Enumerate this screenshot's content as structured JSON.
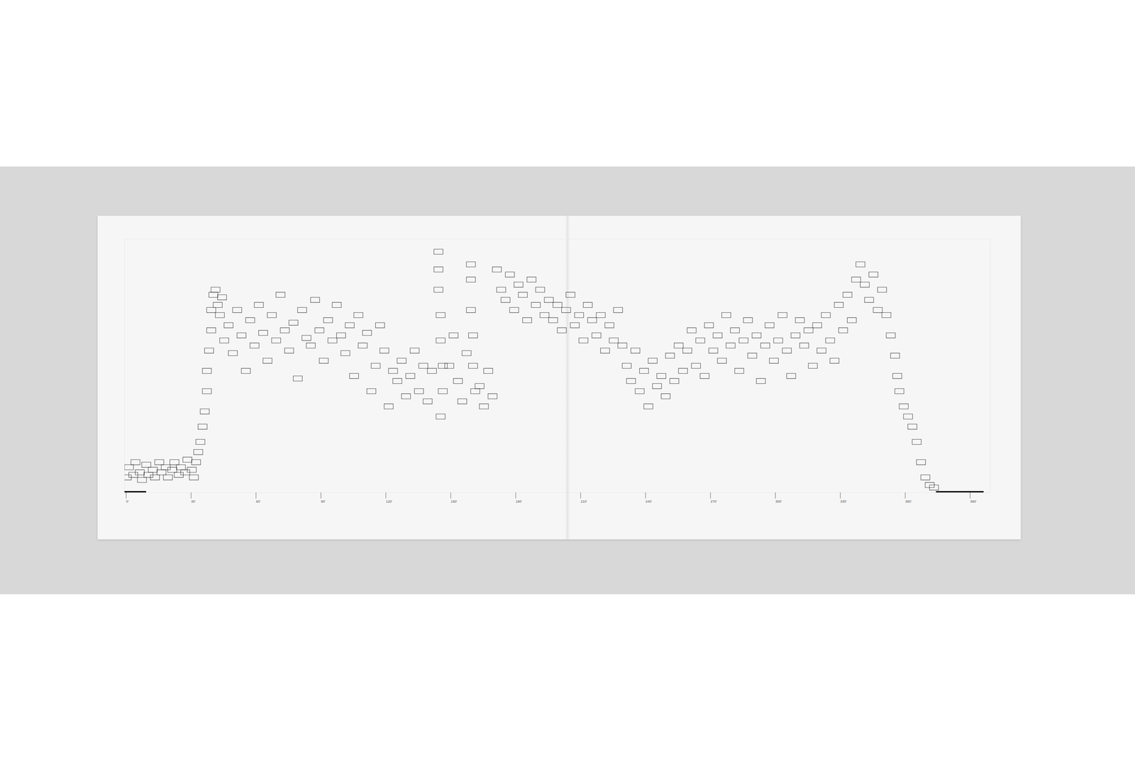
{
  "chart_data": {
    "type": "scatter",
    "marker": "rectangle",
    "color": "#222222",
    "tick_labels": "x",
    "xlim": [
      0,
      400
    ],
    "ylim": [
      0,
      100
    ],
    "xticks": [
      {
        "value": 0,
        "label": "0'"
      },
      {
        "value": 30,
        "label": "30'"
      },
      {
        "value": 60,
        "label": "60'"
      },
      {
        "value": 90,
        "label": "90'"
      },
      {
        "value": 120,
        "label": "120'"
      },
      {
        "value": 150,
        "label": "150'"
      },
      {
        "value": 180,
        "label": "180'"
      },
      {
        "value": 210,
        "label": "210'"
      },
      {
        "value": 240,
        "label": "240'"
      },
      {
        "value": 270,
        "label": "270'"
      },
      {
        "value": 300,
        "label": "300'"
      },
      {
        "value": 330,
        "label": "330'"
      },
      {
        "value": 360,
        "label": "360'"
      },
      {
        "value": 390,
        "label": "390'"
      }
    ],
    "yticks": [],
    "segments": [
      {
        "x1": 0,
        "x2": 10
      },
      {
        "x1": 375,
        "x2": 397
      }
    ],
    "x": [
      1,
      2,
      4,
      5,
      7,
      8,
      10,
      11,
      13,
      14,
      16,
      17,
      19,
      20,
      22,
      23,
      25,
      26,
      28,
      29,
      31,
      32,
      33,
      34,
      35,
      36,
      37,
      38,
      38,
      39,
      40,
      40,
      41,
      42,
      43,
      44,
      45,
      46,
      48,
      50,
      52,
      54,
      56,
      58,
      60,
      62,
      64,
      66,
      68,
      70,
      72,
      74,
      76,
      78,
      80,
      82,
      84,
      86,
      88,
      90,
      92,
      94,
      96,
      98,
      100,
      102,
      104,
      106,
      108,
      110,
      112,
      114,
      116,
      118,
      120,
      122,
      124,
      126,
      128,
      130,
      132,
      134,
      136,
      138,
      140,
      142,
      145,
      145,
      146,
      146,
      147,
      147,
      146,
      145,
      150,
      152,
      154,
      156,
      158,
      160,
      160,
      161,
      161,
      162,
      160,
      164,
      166,
      168,
      170,
      172,
      174,
      176,
      178,
      180,
      182,
      184,
      186,
      188,
      190,
      192,
      194,
      196,
      198,
      200,
      202,
      204,
      206,
      208,
      210,
      212,
      214,
      216,
      218,
      220,
      222,
      224,
      226,
      228,
      230,
      232,
      234,
      236,
      238,
      240,
      242,
      244,
      246,
      248,
      250,
      252,
      254,
      256,
      258,
      260,
      262,
      264,
      266,
      268,
      270,
      272,
      274,
      276,
      278,
      280,
      282,
      284,
      286,
      288,
      290,
      292,
      294,
      296,
      298,
      300,
      302,
      304,
      306,
      308,
      310,
      312,
      314,
      316,
      318,
      320,
      322,
      324,
      326,
      328,
      330,
      332,
      334,
      336,
      338,
      340,
      342,
      344,
      346,
      348,
      350,
      352,
      354,
      356,
      357,
      358,
      360,
      362,
      364,
      366,
      368,
      370,
      372,
      374
    ],
    "values": [
      6,
      10,
      7,
      12,
      8,
      5,
      11,
      7,
      9,
      6,
      12,
      8,
      10,
      6,
      9,
      12,
      7,
      10,
      8,
      13,
      9,
      6,
      12,
      16,
      20,
      26,
      32,
      40,
      48,
      56,
      64,
      72,
      78,
      80,
      74,
      70,
      77,
      60,
      66,
      55,
      72,
      62,
      48,
      68,
      58,
      74,
      63,
      52,
      70,
      60,
      78,
      64,
      56,
      67,
      45,
      72,
      61,
      58,
      76,
      64,
      52,
      68,
      60,
      74,
      62,
      55,
      66,
      46,
      70,
      58,
      63,
      40,
      50,
      66,
      56,
      34,
      48,
      44,
      52,
      38,
      46,
      56,
      40,
      50,
      36,
      48,
      88,
      80,
      70,
      60,
      50,
      40,
      30,
      95,
      50,
      62,
      44,
      36,
      55,
      84,
      72,
      62,
      50,
      40,
      90,
      42,
      34,
      48,
      38,
      88,
      80,
      76,
      86,
      72,
      82,
      78,
      68,
      84,
      74,
      80,
      70,
      76,
      68,
      74,
      64,
      72,
      78,
      66,
      70,
      60,
      74,
      68,
      62,
      70,
      56,
      66,
      60,
      72,
      58,
      50,
      44,
      56,
      40,
      48,
      34,
      52,
      42,
      46,
      38,
      54,
      44,
      58,
      48,
      56,
      64,
      50,
      60,
      46,
      66,
      56,
      62,
      52,
      70,
      58,
      64,
      48,
      60,
      68,
      54,
      62,
      44,
      58,
      66,
      52,
      60,
      70,
      56,
      46,
      62,
      68,
      58,
      64,
      50,
      66,
      56,
      70,
      60,
      52,
      74,
      64,
      78,
      68,
      84,
      90,
      82,
      76,
      86,
      72,
      80,
      70,
      62,
      54,
      46,
      40,
      34,
      30,
      26,
      20,
      12,
      6,
      3,
      2
    ]
  }
}
